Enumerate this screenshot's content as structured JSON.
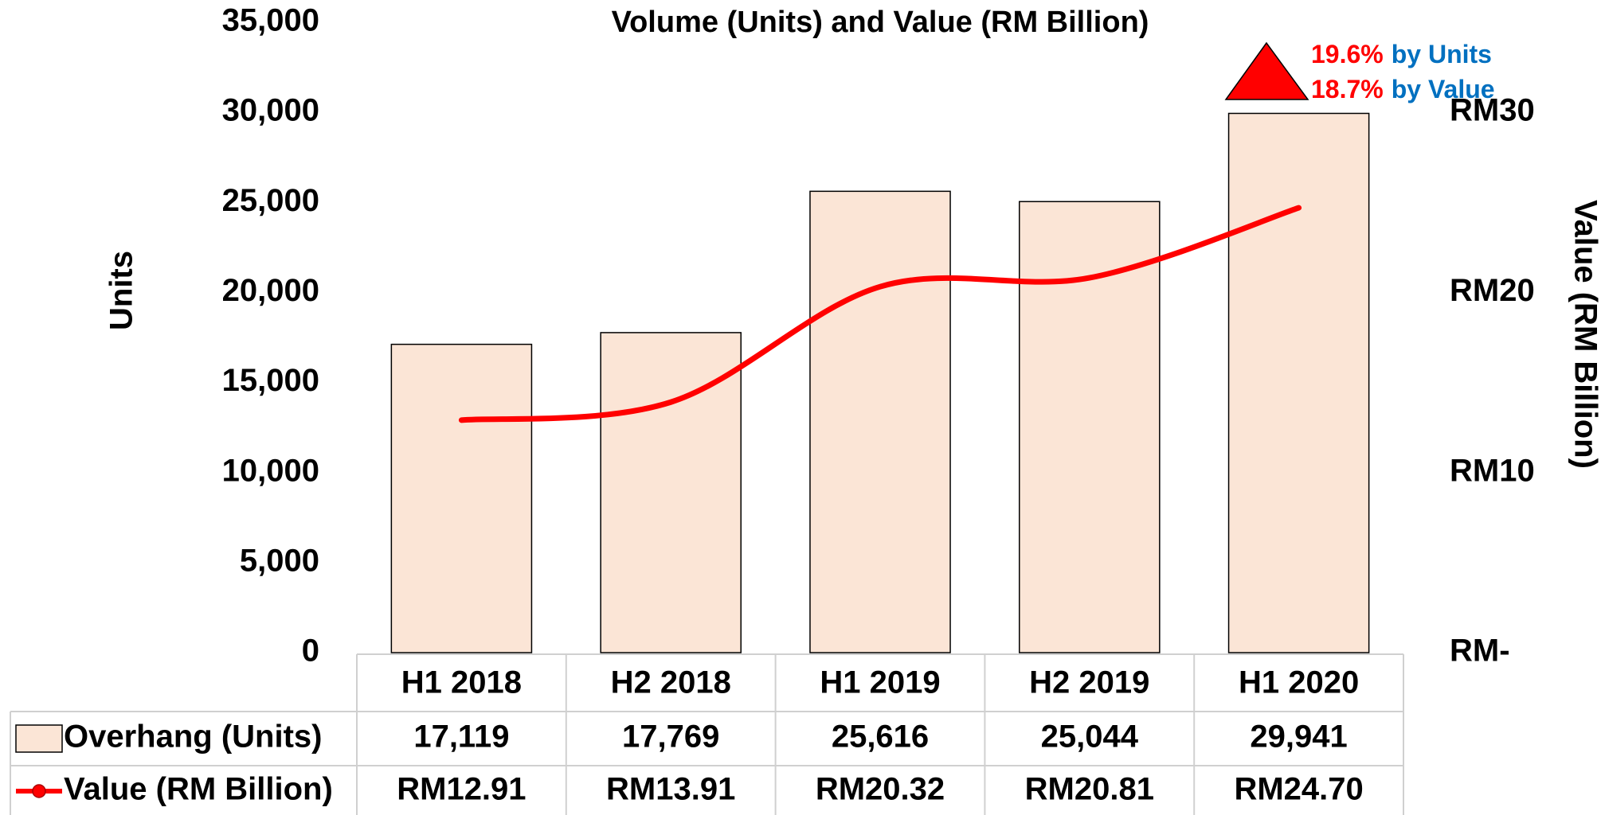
{
  "chart_data": {
    "type": "bar",
    "title": "Volume (Units) and Value (RM Billion)",
    "y_label": "Units",
    "y2_label": "Value (RM Billion)",
    "categories": [
      "H1 2018",
      "H2 2018",
      "H1 2019",
      "H2 2019",
      "H1 2020"
    ],
    "series": [
      {
        "name": "Overhang (Units)",
        "type": "bar",
        "color": "#fbe5d6",
        "values": [
          17119,
          17769,
          25616,
          25044,
          29941
        ],
        "value_labels": [
          "17,119",
          "17,769",
          "25,616",
          "25,044",
          "29,941"
        ]
      },
      {
        "name": "Value (RM Billion)",
        "type": "line",
        "axis": "y2",
        "color": "#ff0000",
        "values": [
          12.91,
          13.91,
          20.32,
          20.81,
          24.7
        ],
        "value_labels": [
          "RM12.91",
          "RM13.91",
          "RM20.32",
          "RM20.81",
          "RM24.70"
        ]
      }
    ],
    "ylim": [
      0,
      35000
    ],
    "yticks": [
      0,
      {
        "value": 5000,
        "label": "5,000"
      },
      {
        "value": 10000,
        "label": "10,000"
      },
      {
        "value": 15000,
        "label": "15,000"
      },
      {
        "value": 20000,
        "label": "20,000"
      },
      {
        "value": 25000,
        "label": "25,000"
      },
      {
        "value": 30000,
        "label": "30,000"
      },
      {
        "value": 35000,
        "label": "35,000"
      }
    ],
    "y2lim": [
      0,
      35
    ],
    "y2ticks": [
      {
        "value": 0,
        "label": "RM-"
      },
      {
        "value": 10,
        "label": "RM10"
      },
      {
        "value": 20,
        "label": "RM20"
      },
      {
        "value": 30,
        "label": "RM30"
      }
    ],
    "annotations": [
      [
        "19.6%",
        "by Units"
      ],
      [
        "18.7%",
        "by Value"
      ]
    ],
    "annotation_colors": [
      "#ff0000",
      "#0070c0"
    ],
    "grid": false
  }
}
